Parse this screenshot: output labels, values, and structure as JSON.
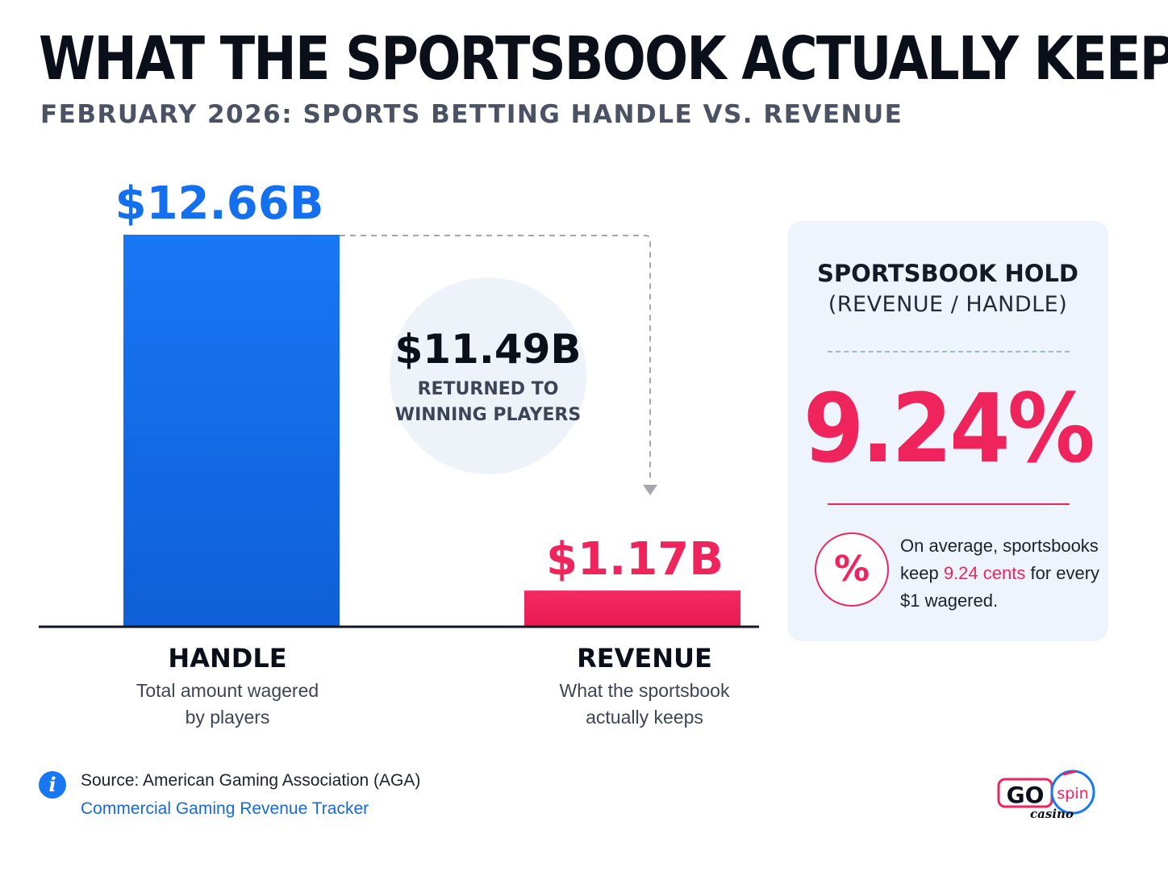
{
  "title": "WHAT THE SPORTSBOOK ACTUALLY KEEPS",
  "subtitle": "FEBRUARY 2026: SPORTS BETTING HANDLE VS. REVENUE",
  "chart_data": {
    "type": "bar",
    "categories": [
      "HANDLE",
      "REVENUE"
    ],
    "values": [
      12.66,
      1.17
    ],
    "unit": "$B",
    "data_labels": [
      "$12.66B",
      "$1.17B"
    ],
    "category_descriptions": [
      [
        "Total amount wagered",
        "by players"
      ],
      [
        "What the sportsbook",
        "actually keeps"
      ]
    ],
    "colors": [
      "#1570f0",
      "#f0245c"
    ],
    "ylim": [
      0,
      12.66
    ],
    "grid": false,
    "annotation": {
      "value": "$11.49B",
      "lines": [
        "RETURNED TO",
        "WINNING PLAYERS"
      ]
    }
  },
  "hold_panel": {
    "title": "SPORTSBOOK HOLD",
    "subtitle": "(REVENUE / HANDLE)",
    "value": "9.24%",
    "badge_symbol": "%",
    "note_before": "On average, sportsbooks keep ",
    "note_highlight": "9.24 cents",
    "note_after": " for every $1 wagered."
  },
  "source": {
    "icon": "info-icon",
    "line": "Source: American Gaming Association (AGA)",
    "link": "Commercial Gaming Revenue Tracker"
  },
  "logo": {
    "main": "GO",
    "badge": "spin",
    "tagline": "casino"
  },
  "colors": {
    "handle": "#1570f0",
    "revenue": "#f0245c",
    "text": "#0b0f1a"
  }
}
